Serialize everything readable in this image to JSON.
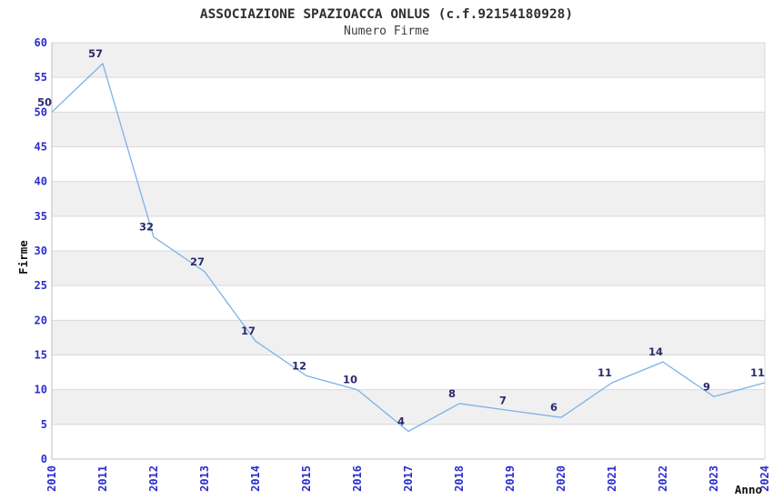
{
  "header": {
    "title": "ASSOCIAZIONE SPAZIOACCA ONLUS (c.f.92154180928)",
    "subtitle": "Numero Firme"
  },
  "chart_data": {
    "type": "line",
    "title": "ASSOCIAZIONE SPAZIOACCA ONLUS (c.f.92154180928)",
    "subtitle": "Numero Firme",
    "xlabel": "Anno",
    "ylabel": "Firme",
    "categories": [
      "2010",
      "2011",
      "2012",
      "2013",
      "2014",
      "2015",
      "2016",
      "2017",
      "2018",
      "2019",
      "2020",
      "2021",
      "2022",
      "2023",
      "2024"
    ],
    "series": [
      {
        "name": "Numero Firme",
        "values": [
          50,
          57,
          32,
          27,
          17,
          12,
          10,
          4,
          8,
          7,
          6,
          11,
          14,
          9,
          11
        ]
      }
    ],
    "ylim": [
      0,
      60
    ],
    "ytick_step": 5,
    "yticks": [
      0,
      5,
      10,
      15,
      20,
      25,
      30,
      35,
      40,
      45,
      50,
      55,
      60
    ],
    "grid": "horizontal-gridlines-with-alternating-bands",
    "legend": "none",
    "point_labels_visible": true,
    "colors": {
      "line": "#7db1e8",
      "tick_label": "#2d2dcc",
      "point_label": "#2b2b6e",
      "band": "#f0f0f0",
      "gridline": "#d9d9d9",
      "axis": "#bfbfbf",
      "title": "#2f2f2f",
      "subtitle": "#3d3d3d",
      "axis_name": "#111111",
      "background": "#ffffff"
    }
  }
}
